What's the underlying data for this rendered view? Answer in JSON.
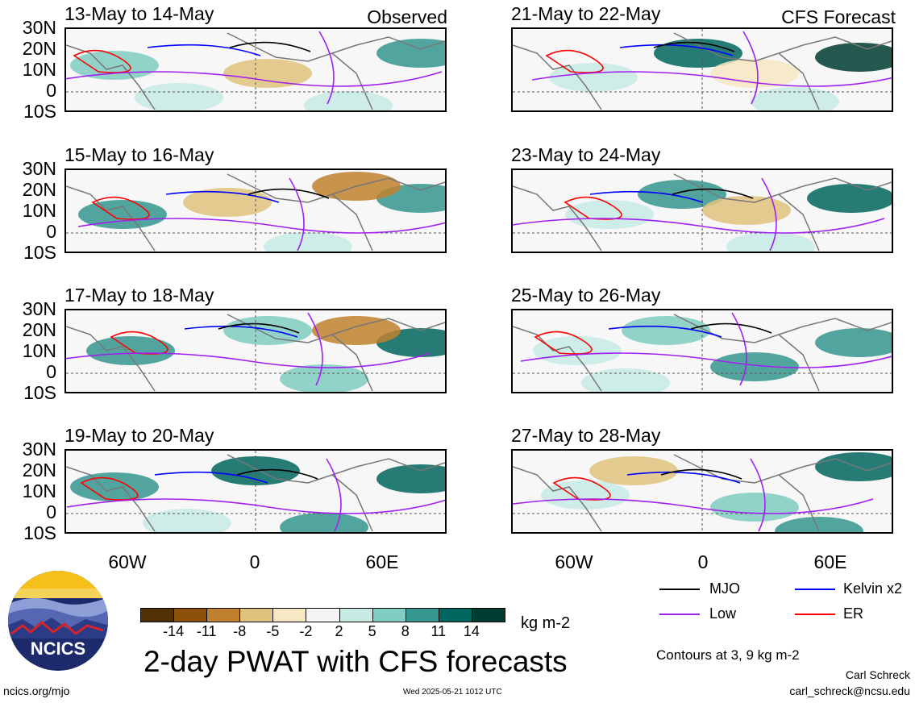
{
  "header": {
    "observed_label": "Observed",
    "forecast_label": "CFS Forecast"
  },
  "panels": [
    {
      "title": "13-May to 14-May"
    },
    {
      "title": "15-May to 16-May"
    },
    {
      "title": "17-May to 18-May"
    },
    {
      "title": "19-May to 20-May"
    },
    {
      "title": "21-May to 22-May"
    },
    {
      "title": "23-May to 24-May"
    },
    {
      "title": "25-May to 26-May"
    },
    {
      "title": "27-May to 28-May"
    }
  ],
  "axes": {
    "lat_ticks": [
      "30N",
      "20N",
      "10N",
      "0",
      "10S"
    ],
    "lon_ticks": [
      "60W",
      "0",
      "60E"
    ]
  },
  "colorbar": {
    "ticks": [
      "-14",
      "-11",
      "-8",
      "-5",
      "-2",
      "2",
      "5",
      "8",
      "11",
      "14"
    ],
    "colors": [
      "#543005",
      "#8c510a",
      "#bf812d",
      "#dfc27d",
      "#f6e8c3",
      "#f5f5f5",
      "#c7eae5",
      "#80cdc1",
      "#35978f",
      "#01665e",
      "#003c30"
    ],
    "units": "kg m-2"
  },
  "legend": {
    "items": [
      {
        "label": "MJO",
        "color": "#000000"
      },
      {
        "label": "Kelvin x2",
        "color": "#0000ff"
      },
      {
        "label": "Low",
        "color": "#a020f0"
      },
      {
        "label": "ER",
        "color": "#ff0000"
      }
    ],
    "contours_note": "Contours at 3, 9 kg m-2"
  },
  "footer": {
    "main_title": "2-day PWAT with CFS forecasts",
    "logo_text": "NCICS",
    "url": "ncics.org/mjo",
    "timestamp": "Wed 2025-05-21 1012 UTC",
    "author": "Carl Schreck",
    "email": "carl_schreck@ncsu.edu"
  }
}
